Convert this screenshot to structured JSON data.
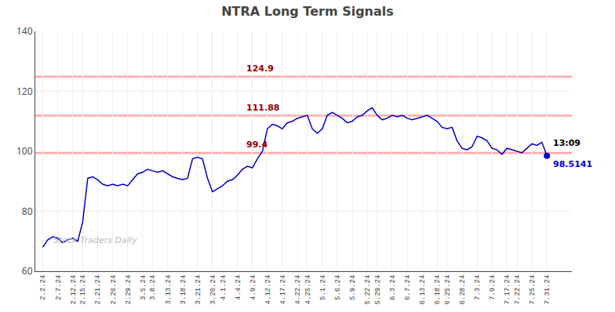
{
  "chart_data": {
    "type": "line",
    "title": "NTRA Long Term Signals",
    "watermark": "Stock Traders Daily",
    "color": "#0000CC",
    "categories": [
      "2.2.24",
      null,
      null,
      "2.7.24",
      null,
      null,
      "2.12.24",
      null,
      "2.15.24",
      null,
      null,
      "2.21.24",
      null,
      null,
      "2.26.24",
      null,
      null,
      "2.29.24",
      null,
      null,
      "3.5.24",
      null,
      "3.8.24",
      null,
      null,
      "3.13.24",
      null,
      null,
      "3.18.24",
      null,
      null,
      "3.21.24",
      null,
      null,
      "3.26.24",
      null,
      "4.1.24",
      null,
      null,
      "4.4.24",
      null,
      null,
      "4.9.24",
      null,
      null,
      "4.12.24",
      null,
      null,
      "4.17.24",
      null,
      null,
      "4.22.24",
      null,
      "4.25.24",
      null,
      null,
      "5.1.24",
      null,
      null,
      "5.6.24",
      null,
      null,
      "5.9.24",
      null,
      null,
      "5.22.24",
      null,
      "5.29.24",
      null,
      null,
      "6.3.24",
      null,
      null,
      "6.7.24",
      null,
      null,
      "6.13.24",
      null,
      null,
      "6.18.24",
      null,
      "6.25.24",
      null,
      null,
      "6.28.24",
      null,
      null,
      "7.3.24",
      null,
      null,
      "7.9.24",
      null,
      null,
      "7.17.24",
      null,
      "7.22.24",
      null,
      null,
      "7.25.24",
      null,
      null,
      "7.31.24"
    ],
    "values": [
      68.0,
      70.5,
      71.5,
      71.0,
      69.5,
      70.5,
      71.0,
      70.0,
      76.5,
      91.0,
      91.5,
      90.5,
      89.0,
      88.5,
      89.0,
      88.5,
      89.0,
      88.5,
      90.5,
      92.5,
      93.0,
      94.0,
      93.5,
      93.0,
      93.5,
      92.5,
      91.5,
      91.0,
      90.5,
      91.0,
      97.5,
      98.0,
      97.5,
      91.0,
      86.5,
      87.5,
      88.5,
      90.0,
      90.5,
      92.0,
      94.0,
      95.0,
      94.5,
      97.5,
      100.0,
      107.5,
      109.0,
      108.5,
      107.5,
      109.5,
      110.0,
      111.0,
      111.5,
      112.0,
      107.5,
      106.0,
      107.5,
      112.0,
      113.0,
      112.0,
      111.0,
      109.5,
      110.0,
      111.5,
      112.0,
      113.5,
      114.5,
      112.0,
      110.5,
      111.0,
      112.0,
      111.5,
      112.0,
      111.0,
      110.5,
      111.0,
      111.5,
      112.0,
      111.0,
      110.0,
      108.0,
      107.5,
      108.0,
      103.5,
      101.0,
      100.5,
      101.5,
      105.0,
      104.5,
      103.5,
      101.0,
      100.5,
      99.0,
      101.0,
      100.5,
      100.0,
      99.5,
      101.0,
      102.5,
      102.0,
      103.0,
      98.5141
    ],
    "ylim": [
      60,
      140
    ],
    "yticks": [
      60,
      80,
      100,
      120,
      140
    ],
    "grid": true,
    "hlines": [
      {
        "y": 124.9,
        "label": "124.9"
      },
      {
        "y": 111.88,
        "label": "111.88"
      },
      {
        "y": 99.4,
        "label": "99.4"
      }
    ],
    "hline_color": "#ffaaaa",
    "hline_label_color": "#990000",
    "last_time": "13:09"
  }
}
